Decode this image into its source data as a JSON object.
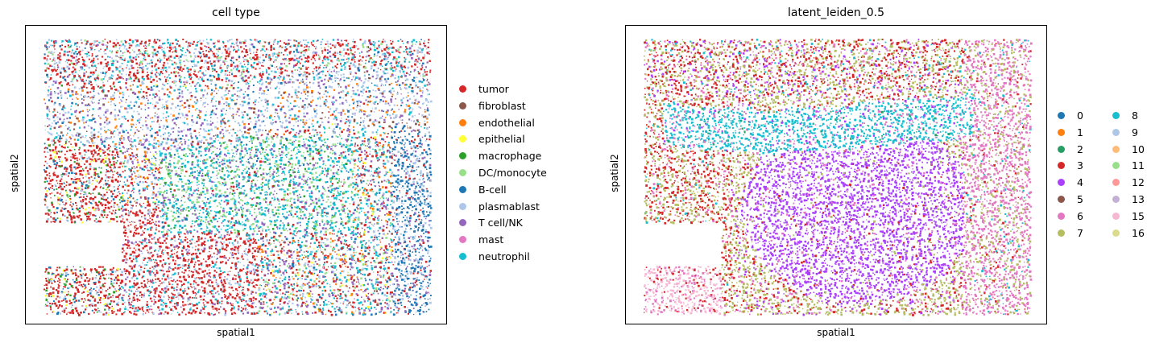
{
  "chart_data": [
    {
      "type": "scatter",
      "title": "cell type",
      "xlabel": "spatial1",
      "ylabel": "spatial2",
      "grid": false,
      "legend_placement": "right",
      "legend": [
        {
          "label": "tumor",
          "color": "#d62728"
        },
        {
          "label": "fibroblast",
          "color": "#8c564b"
        },
        {
          "label": "endothelial",
          "color": "#ff7f0e"
        },
        {
          "label": "epithelial",
          "color": "#ffff33"
        },
        {
          "label": "macrophage",
          "color": "#2ca02c"
        },
        {
          "label": "DC/monocyte",
          "color": "#98df8a"
        },
        {
          "label": "B-cell",
          "color": "#1f77b4"
        },
        {
          "label": "plasmablast",
          "color": "#aec7e8"
        },
        {
          "label": "T cell/NK",
          "color": "#9467bd"
        },
        {
          "label": "mast",
          "color": "#e377c2"
        },
        {
          "label": "neutrophil",
          "color": "#17becf"
        }
      ]
    },
    {
      "type": "scatter",
      "title": "latent_leiden_0.5",
      "xlabel": "spatial1",
      "ylabel": "spatial2",
      "grid": false,
      "legend_placement": "right",
      "legend_columns": 2,
      "legend": [
        {
          "label": "0",
          "color": "#1f77b4"
        },
        {
          "label": "1",
          "color": "#ff7f0e"
        },
        {
          "label": "2",
          "color": "#279e68"
        },
        {
          "label": "3",
          "color": "#d62728"
        },
        {
          "label": "4",
          "color": "#aa40fc"
        },
        {
          "label": "5",
          "color": "#8c564b"
        },
        {
          "label": "6",
          "color": "#e377c2"
        },
        {
          "label": "7",
          "color": "#b5bd61"
        },
        {
          "label": "8",
          "color": "#17becf"
        },
        {
          "label": "9",
          "color": "#aec7e8"
        },
        {
          "label": "10",
          "color": "#ffbb78"
        },
        {
          "label": "11",
          "color": "#98df8a"
        },
        {
          "label": "12",
          "color": "#ff9896"
        },
        {
          "label": "13",
          "color": "#c5b0d5"
        },
        {
          "label": "15",
          "color": "#f7b6d2"
        },
        {
          "label": "16",
          "color": "#dbdb8d"
        }
      ]
    }
  ]
}
